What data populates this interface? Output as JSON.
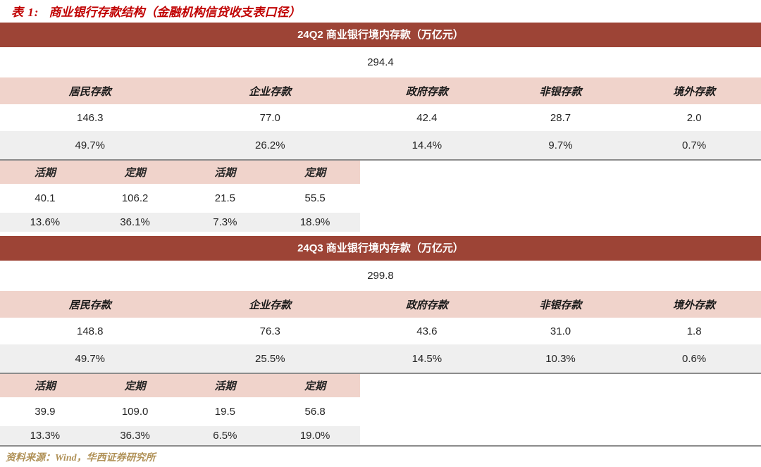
{
  "page": {
    "table_label": "表 1:",
    "title": "商业银行存款结构（金融机构信贷收支表口径）",
    "source": "资料来源：Wind，华西证券研究所"
  },
  "colors": {
    "bar_red": "#9d4436",
    "header_pink": "#f0d3cb",
    "row_gray": "#efefef",
    "title_red": "#c00000",
    "source_gold": "#b09157",
    "divider_gray": "#8c8c8c"
  },
  "chart_data": {
    "type": "table",
    "title": "商业银行存款结构（金融机构信贷收支表口径）",
    "sections": [
      {
        "header": "24Q2 商业银行境内存款（万亿元）",
        "total": "294.4",
        "categories": [
          "居民存款",
          "企业存款",
          "政府存款",
          "非银存款",
          "境外存款"
        ],
        "values": [
          "146.3",
          "77.0",
          "42.4",
          "28.7",
          "2.0"
        ],
        "shares": [
          "49.7%",
          "26.2%",
          "14.4%",
          "9.7%",
          "0.7%"
        ],
        "sub_headers": [
          "活期",
          "定期",
          "活期",
          "定期"
        ],
        "sub_values": [
          "40.1",
          "106.2",
          "21.5",
          "55.5"
        ],
        "sub_shares": [
          "13.6%",
          "36.1%",
          "7.3%",
          "18.9%"
        ]
      },
      {
        "header": "24Q3 商业银行境内存款（万亿元）",
        "total": "299.8",
        "categories": [
          "居民存款",
          "企业存款",
          "政府存款",
          "非银存款",
          "境外存款"
        ],
        "values": [
          "148.8",
          "76.3",
          "43.6",
          "31.0",
          "1.8"
        ],
        "shares": [
          "49.7%",
          "25.5%",
          "14.5%",
          "10.3%",
          "0.6%"
        ],
        "sub_headers": [
          "活期",
          "定期",
          "活期",
          "定期"
        ],
        "sub_values": [
          "39.9",
          "109.0",
          "19.5",
          "56.8"
        ],
        "sub_shares": [
          "13.3%",
          "36.3%",
          "6.5%",
          "19.0%"
        ]
      }
    ]
  }
}
